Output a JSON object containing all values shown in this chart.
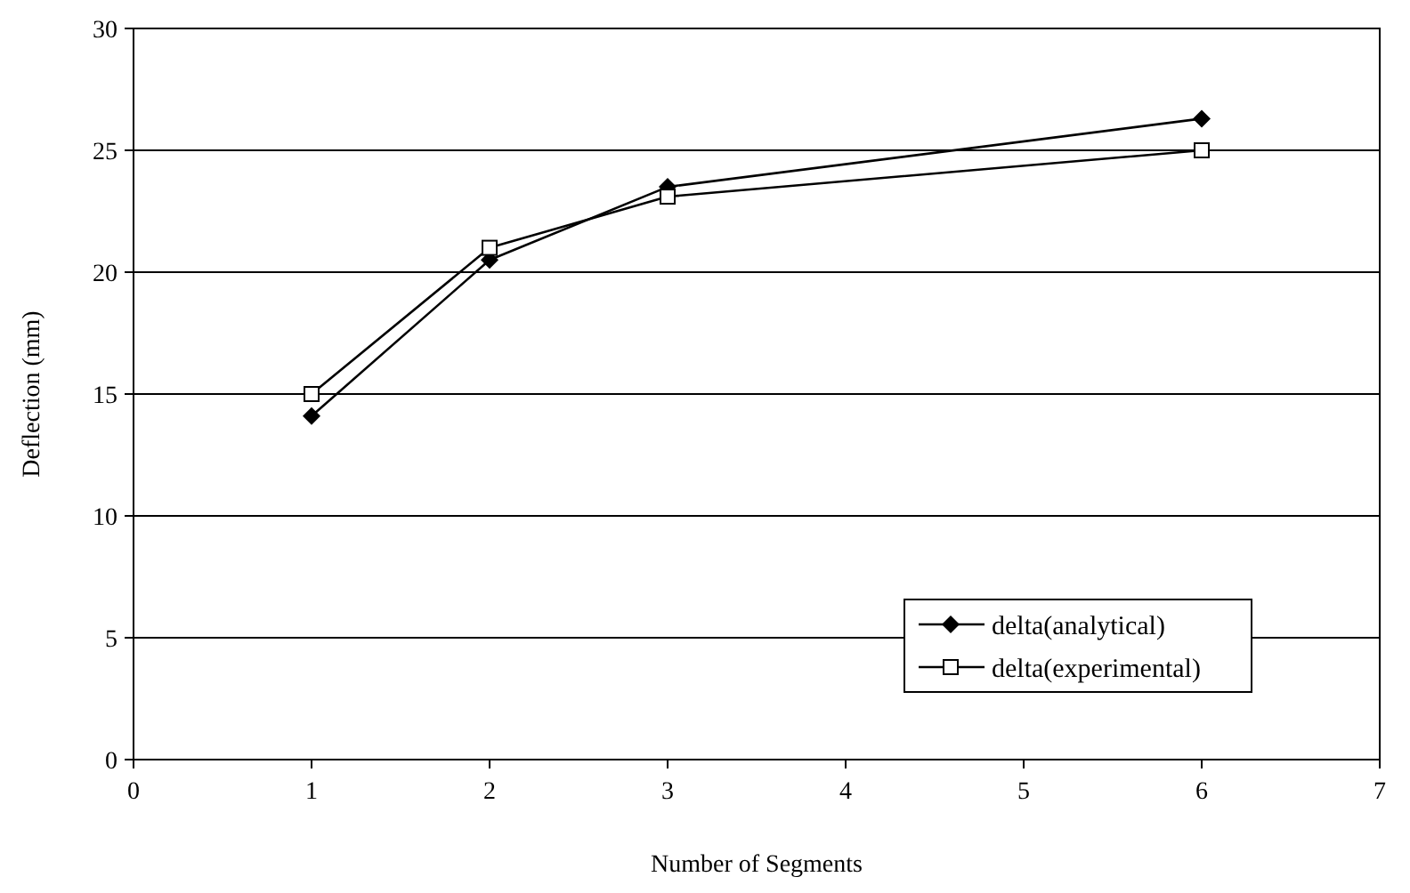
{
  "chart_data": {
    "type": "line",
    "xlabel": "Number of Segments",
    "ylabel": "Deflection (mm)",
    "x": [
      1,
      2,
      3,
      6
    ],
    "series": [
      {
        "name": "delta(analytical)",
        "color": "#000000",
        "values": [
          14.1,
          20.5,
          23.5,
          26.3
        ],
        "marker": "diamond"
      },
      {
        "name": "delta(experimental)",
        "color": "#000000",
        "values": [
          15,
          21,
          23.1,
          25
        ],
        "marker": "square"
      }
    ],
    "xlim": [
      0,
      7
    ],
    "xticks": [
      0,
      1,
      2,
      3,
      4,
      5,
      6,
      7
    ],
    "ylim": [
      0,
      30
    ],
    "yticks": [
      0,
      5,
      10,
      15,
      20,
      25,
      30
    ],
    "grid": "y",
    "legend": "bottom right"
  }
}
